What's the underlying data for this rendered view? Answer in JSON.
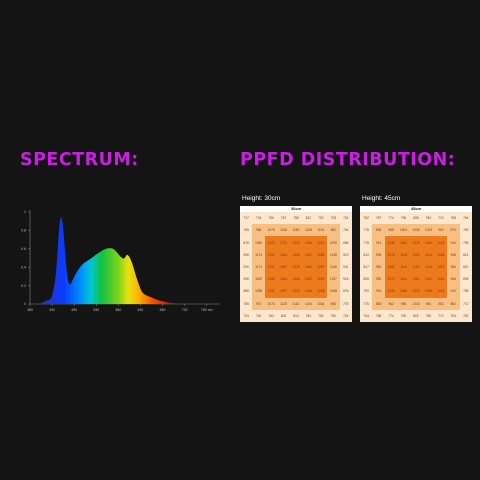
{
  "titles": {
    "spectrum": "SPECTRUM:",
    "ppfd": "PPFD DISTRIBUTION:"
  },
  "chart_data": [
    {
      "type": "area",
      "title": "SPECTRUM:",
      "xlabel": "",
      "ylabel": "",
      "xlim": [
        350,
        780
      ],
      "ylim": [
        0,
        1
      ],
      "grid": false,
      "x_ticks": [
        {
          "value": 350,
          "label": "380"
        },
        {
          "value": 400,
          "label": "430"
        },
        {
          "value": 450,
          "label": "480"
        },
        {
          "value": 500,
          "label": "530"
        },
        {
          "value": 550,
          "label": "580"
        },
        {
          "value": 600,
          "label": "630"
        },
        {
          "value": 650,
          "label": "680"
        },
        {
          "value": 700,
          "label": "730"
        },
        {
          "value": 750,
          "label": "780 nm"
        }
      ],
      "y_ticks": [
        {
          "value": 0,
          "label": "0"
        },
        {
          "value": 0.2,
          "label": "0.2"
        },
        {
          "value": 0.4,
          "label": "0.4"
        },
        {
          "value": 0.6,
          "label": "0.6"
        },
        {
          "value": 0.8,
          "label": "0.8"
        },
        {
          "value": 1,
          "label": "1"
        }
      ],
      "x": [
        370,
        380,
        390,
        400,
        410,
        415,
        420,
        425,
        430,
        435,
        440,
        445,
        450,
        460,
        470,
        480,
        490,
        500,
        510,
        520,
        530,
        540,
        550,
        560,
        565,
        570,
        580,
        590,
        600,
        605,
        610,
        620,
        630,
        640,
        650,
        660,
        670,
        680,
        690,
        700
      ],
      "values": [
        0,
        0.02,
        0.04,
        0.06,
        0.35,
        0.8,
        0.98,
        0.85,
        0.5,
        0.26,
        0.2,
        0.24,
        0.3,
        0.38,
        0.44,
        0.47,
        0.5,
        0.54,
        0.57,
        0.6,
        0.61,
        0.6,
        0.54,
        0.49,
        0.5,
        0.55,
        0.47,
        0.3,
        0.16,
        0.12,
        0.1,
        0.08,
        0.06,
        0.04,
        0.03,
        0.02,
        0.01,
        0.01,
        0.0,
        0
      ]
    },
    {
      "type": "heatmap",
      "title": "Height: 30cm",
      "header": "30cm",
      "levels": [
        [
          0,
          0,
          0,
          0,
          0,
          0,
          0,
          0,
          0
        ],
        [
          0,
          1,
          1,
          1,
          1,
          1,
          1,
          1,
          0
        ],
        [
          0,
          1,
          2,
          2,
          2,
          2,
          2,
          1,
          0
        ],
        [
          0,
          1,
          2,
          2,
          2,
          2,
          2,
          1,
          0
        ],
        [
          0,
          1,
          2,
          2,
          2,
          2,
          2,
          1,
          0
        ],
        [
          0,
          1,
          2,
          2,
          2,
          2,
          2,
          1,
          0
        ],
        [
          0,
          1,
          2,
          2,
          2,
          2,
          2,
          1,
          0
        ],
        [
          0,
          1,
          1,
          1,
          1,
          1,
          1,
          1,
          0
        ],
        [
          0,
          0,
          0,
          0,
          0,
          0,
          0,
          0,
          0
        ]
      ],
      "values": [
        [
          "717",
          "734",
          "756",
          "767",
          "758",
          "812",
          "792",
          "728",
          "724"
        ],
        [
          "766",
          "966",
          "1075",
          "1148",
          "1180",
          "1158",
          "1102",
          "982",
          "764"
        ],
        [
          "876",
          "1082",
          "1223",
          "1270",
          "1302",
          "1286",
          "1231",
          "1090",
          "886"
        ],
        [
          "906",
          "1173",
          "1291",
          "1343",
          "1365",
          "1347",
          "1288",
          "1158",
          "919"
        ],
        [
          "926",
          "1174",
          "1297",
          "1357",
          "1378",
          "1360",
          "1297",
          "1166",
          "931"
        ],
        [
          "936",
          "1169",
          "1286",
          "1343",
          "1366",
          "1352",
          "1290",
          "1157",
          "916"
        ],
        [
          "886",
          "1098",
          "1237",
          "1297",
          "1316",
          "1296",
          "1235",
          "1088",
          "876"
        ],
        [
          "785",
          "972",
          "1076",
          "1135",
          "1162",
          "1144",
          "1064",
          "956",
          "775"
        ],
        [
          "724",
          "740",
          "763",
          "803",
          "813",
          "784",
          "762",
          "750",
          "724"
        ]
      ]
    },
    {
      "type": "heatmap",
      "title": "Height: 45cm",
      "header": "45cm",
      "levels": [
        [
          0,
          0,
          0,
          0,
          0,
          0,
          0,
          0,
          0
        ],
        [
          0,
          1,
          1,
          1,
          1,
          1,
          1,
          1,
          0
        ],
        [
          0,
          1,
          2,
          2,
          2,
          2,
          2,
          1,
          0
        ],
        [
          0,
          1,
          2,
          2,
          2,
          2,
          2,
          1,
          0
        ],
        [
          0,
          1,
          2,
          2,
          2,
          2,
          2,
          1,
          0
        ],
        [
          0,
          1,
          2,
          2,
          2,
          2,
          2,
          1,
          0
        ],
        [
          0,
          1,
          2,
          2,
          2,
          2,
          2,
          1,
          0
        ],
        [
          0,
          1,
          1,
          1,
          1,
          1,
          1,
          1,
          0
        ],
        [
          0,
          0,
          0,
          0,
          0,
          0,
          0,
          0,
          0
        ]
      ],
      "values": [
        [
          "762",
          "787",
          "774",
          "796",
          "806",
          "784",
          "774",
          "768",
          "764"
        ],
        [
          "776",
          "884",
          "968",
          "1004",
          "1026",
          "1005",
          "960",
          "870",
          "780"
        ],
        [
          "778",
          "914",
          "1036",
          "1062",
          "1078",
          "1060",
          "1024",
          "916",
          "795"
        ],
        [
          "812",
          "954",
          "1076",
          "1108",
          "1123",
          "1104",
          "1068",
          "948",
          "814"
        ],
        [
          "817",
          "960",
          "1082",
          "1116",
          "1130",
          "1114",
          "1076",
          "956",
          "821"
        ],
        [
          "808",
          "952",
          "1070",
          "1104",
          "1118",
          "1100",
          "1062",
          "946",
          "806"
        ],
        [
          "790",
          "916",
          "1034",
          "1060",
          "1073",
          "1058",
          "1021",
          "910",
          "785"
        ],
        [
          "776",
          "882",
          "962",
          "996",
          "1016",
          "994",
          "952",
          "862",
          "772"
        ],
        [
          "764",
          "786",
          "774",
          "790",
          "802",
          "786",
          "772",
          "764",
          "762"
        ]
      ]
    }
  ]
}
